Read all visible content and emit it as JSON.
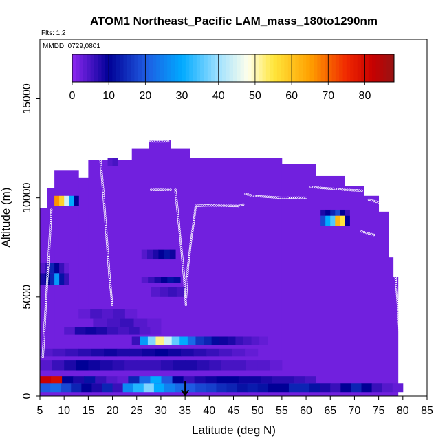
{
  "chart_data": {
    "type": "heatmap",
    "title": "ATOM1 Northeast_Pacific LAM_mass_180to1290nm",
    "subtitle_flights": "Flts: 1,2",
    "subtitle_dates": "MMDD: 0729,0801",
    "xlabel": "Latitude (deg N)",
    "ylabel": "Altitude (m)",
    "xlim": [
      5,
      85
    ],
    "ylim": [
      0,
      18000
    ],
    "x_ticks": [
      "5",
      "10",
      "15",
      "20",
      "25",
      "30",
      "35",
      "40",
      "45",
      "50",
      "55",
      "60",
      "65",
      "70",
      "75",
      "80",
      "85"
    ],
    "y_ticks": [
      "0",
      "5000",
      "10000",
      "15000"
    ],
    "colorbar": {
      "min": 0,
      "max": 88,
      "ticks": [
        "0",
        "10",
        "20",
        "30",
        "40",
        "50",
        "60",
        "70",
        "80"
      ]
    },
    "background_value": 2,
    "marker_latitude": 35,
    "columns": [
      {
        "lat": [
          5,
          6.5
        ],
        "alt": [
          0,
          9500
        ]
      },
      {
        "lat": [
          6.5,
          8
        ],
        "alt": [
          0,
          10500
        ]
      },
      {
        "lat": [
          8,
          13
        ],
        "alt": [
          0,
          11400
        ]
      },
      {
        "lat": [
          13,
          15
        ],
        "alt": [
          0,
          11000
        ]
      },
      {
        "lat": [
          15,
          24
        ],
        "alt": [
          0,
          11900
        ]
      },
      {
        "lat": [
          24,
          27.5
        ],
        "alt": [
          0,
          12500
        ]
      },
      {
        "lat": [
          27.5,
          32
        ],
        "alt": [
          0,
          12900
        ]
      },
      {
        "lat": [
          32,
          36
        ],
        "alt": [
          0,
          12500
        ]
      },
      {
        "lat": [
          36,
          55
        ],
        "alt": [
          0,
          12000
        ]
      },
      {
        "lat": [
          55,
          62
        ],
        "alt": [
          0,
          11700
        ]
      },
      {
        "lat": [
          62,
          68
        ],
        "alt": [
          0,
          11100
        ]
      },
      {
        "lat": [
          68,
          72
        ],
        "alt": [
          0,
          10600
        ]
      },
      {
        "lat": [
          72,
          75
        ],
        "alt": [
          0,
          10100
        ]
      },
      {
        "lat": [
          75,
          77
        ],
        "alt": [
          0,
          9300
        ]
      },
      {
        "lat": [
          77,
          78
        ],
        "alt": [
          0,
          7000
        ]
      },
      {
        "lat": [
          78,
          79
        ],
        "alt": [
          0,
          6000
        ]
      }
    ],
    "enhanced_layers": [
      {
        "alt": [
          200,
          650
        ],
        "lat": [
          5,
          80
        ],
        "values": [
          20,
          22,
          18,
          14,
          10,
          8,
          14,
          6,
          26,
          32,
          38,
          30,
          25,
          22,
          20,
          18,
          17,
          15,
          14,
          12,
          13,
          12,
          10,
          10,
          14,
          14,
          12,
          8,
          6,
          10,
          14,
          10,
          6,
          4,
          3
        ]
      },
      {
        "alt": [
          650,
          1000
        ],
        "lat": [
          5,
          62
        ],
        "values": [
          82,
          80,
          10,
          8,
          12,
          6,
          4,
          3,
          14,
          22,
          30,
          20,
          10,
          6,
          8,
          9,
          10,
          10,
          9,
          9,
          8,
          7,
          7,
          6,
          5
        ]
      },
      {
        "alt": [
          1300,
          1800
        ],
        "lat": [
          5,
          55
        ],
        "values": [
          4,
          6,
          8,
          10,
          9,
          8,
          7,
          6,
          6,
          6,
          7,
          8,
          8,
          7,
          6,
          5,
          5,
          4,
          4,
          3
        ]
      },
      {
        "alt": [
          2000,
          2400
        ],
        "lat": [
          5,
          50
        ],
        "values": [
          4,
          5,
          6,
          7,
          8,
          9,
          8,
          8,
          9,
          10,
          9,
          8,
          7,
          6,
          5,
          4,
          3
        ]
      },
      {
        "alt": [
          2600,
          3000
        ],
        "lat": [
          24,
          52
        ],
        "values": [
          6,
          28,
          38,
          52,
          44,
          36,
          30,
          22,
          16,
          14,
          11,
          9,
          8,
          6,
          5,
          4,
          3
        ]
      },
      {
        "alt": [
          3100,
          3500
        ],
        "lat": [
          10,
          30
        ],
        "values": [
          4,
          8,
          9,
          8,
          6,
          5,
          6,
          4,
          3
        ]
      },
      {
        "alt": [
          3500,
          3900
        ],
        "lat": [
          16,
          30
        ],
        "values": [
          4,
          5,
          6,
          4,
          3
        ]
      },
      {
        "alt": [
          3900,
          4400
        ],
        "lat": [
          13,
          25
        ],
        "values": [
          3,
          5,
          4,
          5,
          3
        ]
      },
      {
        "alt": [
          5000,
          5500
        ],
        "lat": [
          28,
          35
        ],
        "values": [
          4,
          5,
          6,
          5
        ]
      },
      {
        "alt": [
          5600,
          6200
        ],
        "lat": [
          5,
          11
        ],
        "values": [
          8,
          10,
          14,
          28,
          12,
          6
        ]
      },
      {
        "alt": [
          6200,
          6700
        ],
        "lat": [
          5,
          11
        ],
        "values": [
          4,
          6,
          14,
          10,
          6,
          3
        ]
      },
      {
        "alt": [
          5700,
          6000
        ],
        "lat": [
          26,
          34
        ],
        "values": [
          4,
          6,
          8,
          10,
          12,
          11
        ]
      },
      {
        "alt": [
          6900,
          7400
        ],
        "lat": [
          26,
          33
        ],
        "values": [
          4,
          6,
          8,
          10,
          12,
          9
        ]
      },
      {
        "alt": [
          8600,
          9100
        ],
        "lat": [
          63,
          69
        ],
        "values": [
          18,
          30,
          35,
          62,
          55,
          10
        ]
      },
      {
        "alt": [
          9100,
          9400
        ],
        "lat": [
          63,
          69
        ],
        "values": [
          8,
          10,
          14,
          18,
          10,
          6
        ]
      },
      {
        "alt": [
          9600,
          10100
        ],
        "lat": [
          8,
          13
        ],
        "values": [
          66,
          58,
          44,
          30,
          10
        ]
      },
      {
        "alt": [
          11600,
          12000
        ],
        "lat": [
          19,
          21
        ],
        "values": [
          4,
          5
        ]
      }
    ],
    "flight_tracks": [
      {
        "lat": [
          37.2,
          39.5,
          42,
          44,
          46,
          47.5
        ],
        "alt": [
          9600,
          9620,
          9610,
          9600,
          9590,
          9700
        ]
      },
      {
        "lat": [
          47.5,
          49,
          52,
          55,
          58,
          60.5
        ],
        "alt": [
          10200,
          10100,
          10050,
          10000,
          10010,
          10000
        ]
      },
      {
        "lat": [
          61,
          63,
          66,
          68,
          70,
          72
        ],
        "alt": [
          10550,
          10500,
          10450,
          10400,
          10380,
          10350
        ]
      },
      {
        "lat": [
          73,
          74.5,
          76,
          77.5
        ],
        "alt": [
          9900,
          9800,
          9700,
          9600
        ]
      },
      {
        "lat": [
          71.5,
          73,
          74.5
        ],
        "alt": [
          8300,
          8200,
          8100
        ]
      },
      {
        "lat": [
          27.5,
          29.5,
          32
        ],
        "alt": [
          12850,
          12850,
          12850
        ]
      },
      {
        "lat": [
          28,
          30,
          32.5
        ],
        "alt": [
          10400,
          10400,
          10400
        ]
      },
      {
        "lat": [
          33,
          33.6,
          34.2,
          34.8,
          35.2
        ],
        "alt": [
          10400,
          9000,
          7500,
          6000,
          4500
        ]
      },
      {
        "lat": [
          35.2,
          35.6,
          36.2,
          36.8,
          37.2
        ],
        "alt": [
          5000,
          6500,
          7800,
          8800,
          9600
        ]
      },
      {
        "lat": [
          17.5,
          18.2,
          18.8,
          19.4,
          20
        ],
        "alt": [
          12000,
          10000,
          8000,
          6000,
          4500
        ]
      },
      {
        "lat": [
          5.6,
          6.2,
          6.8,
          7.4
        ],
        "alt": [
          2000,
          4500,
          7000,
          9500
        ]
      },
      {
        "lat": [
          78.5,
          79,
          79.4,
          79.8
        ],
        "alt": [
          6000,
          4500,
          3000,
          1500
        ]
      }
    ]
  }
}
